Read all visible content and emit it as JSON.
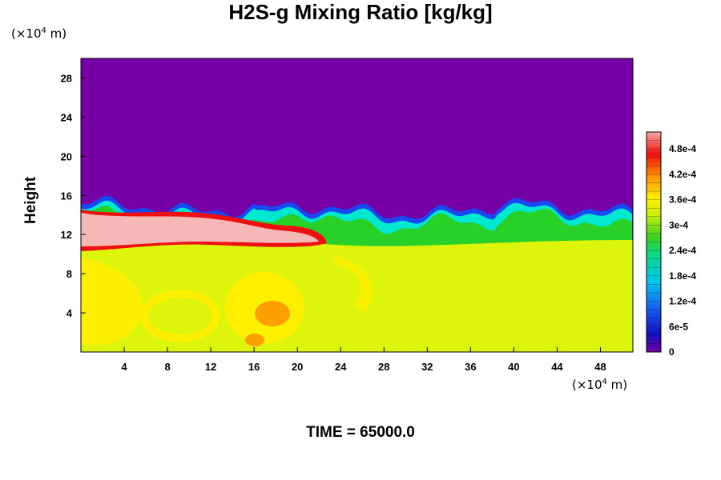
{
  "chart_data": {
    "type": "heatmap",
    "title": "H2S-g Mixing Ratio [kg/kg]",
    "ylabel": "Height",
    "x_unit": "(×10⁴ m)",
    "y_unit": "(×10⁴ m)",
    "x_ticks": [
      4,
      8,
      12,
      16,
      20,
      24,
      28,
      32,
      36,
      40,
      44,
      48
    ],
    "y_ticks": [
      4,
      8,
      12,
      16,
      20,
      24,
      28
    ],
    "xlim": [
      0,
      51
    ],
    "ylim": [
      0,
      30
    ],
    "colorbar_labels": [
      "0",
      "6e-5",
      "1.2e-4",
      "1.8e-4",
      "2.4e-4",
      "3e-4",
      "3.6e-4",
      "4.2e-4",
      "4.8e-4"
    ],
    "colorbar_values": [
      0,
      6e-05,
      0.00012,
      0.00018,
      0.00024,
      0.0003,
      0.00036,
      0.00042,
      0.00048
    ],
    "colorbar_range": [
      0,
      0.00052
    ],
    "colors": {
      "upper": "#7400a6",
      "lower": "#dcf50a",
      "max": "#f6b7b7",
      "high": "#ee1010",
      "yellow": "#fff000",
      "orange": "#fca000",
      "cyan": "#00e8d0",
      "green": "#28d028",
      "blue": "#1848f0"
    },
    "time_label": "TIME = 65000.0"
  }
}
